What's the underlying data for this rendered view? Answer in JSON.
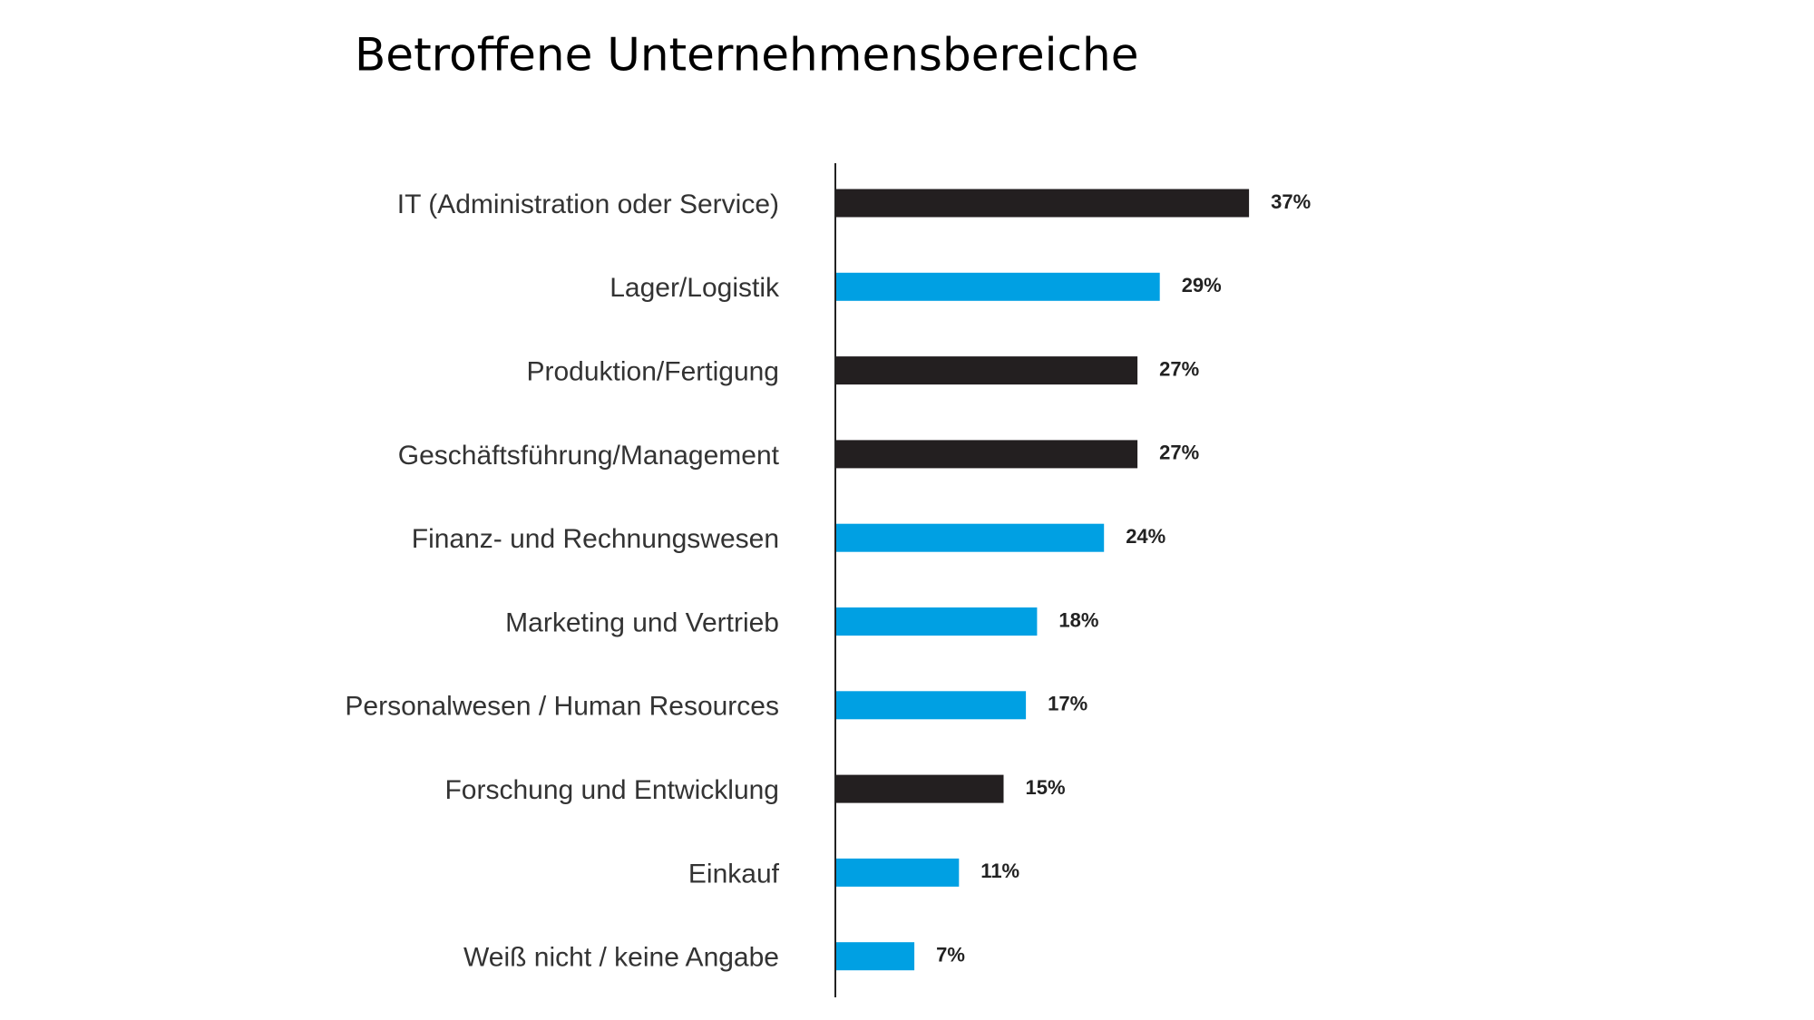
{
  "chart_data": {
    "type": "hbar",
    "title": "Betroffene Unternehmensbereiche",
    "categories": [
      "IT (Administration oder Service)",
      "Lager/Logistik",
      "Produktion/Fertigung",
      "Geschäftsführung/Management",
      "Finanz- und Rechnungswesen",
      "Marketing und Vertrieb",
      "Personalwesen / Human Resources",
      "Forschung und Entwicklung",
      "Einkauf",
      "Weiß nicht / keine Angabe"
    ],
    "values": [
      37,
      29,
      27,
      27,
      24,
      18,
      17,
      15,
      11,
      7
    ],
    "value_labels": [
      "37%",
      "29%",
      "27%",
      "27%",
      "24%",
      "18%",
      "17%",
      "15%",
      "11%",
      "7%"
    ],
    "colors": [
      "#231f20",
      "#00a0e3",
      "#231f20",
      "#231f20",
      "#00a0e3",
      "#00a0e3",
      "#00a0e3",
      "#231f20",
      "#00a0e3",
      "#00a0e3"
    ]
  }
}
